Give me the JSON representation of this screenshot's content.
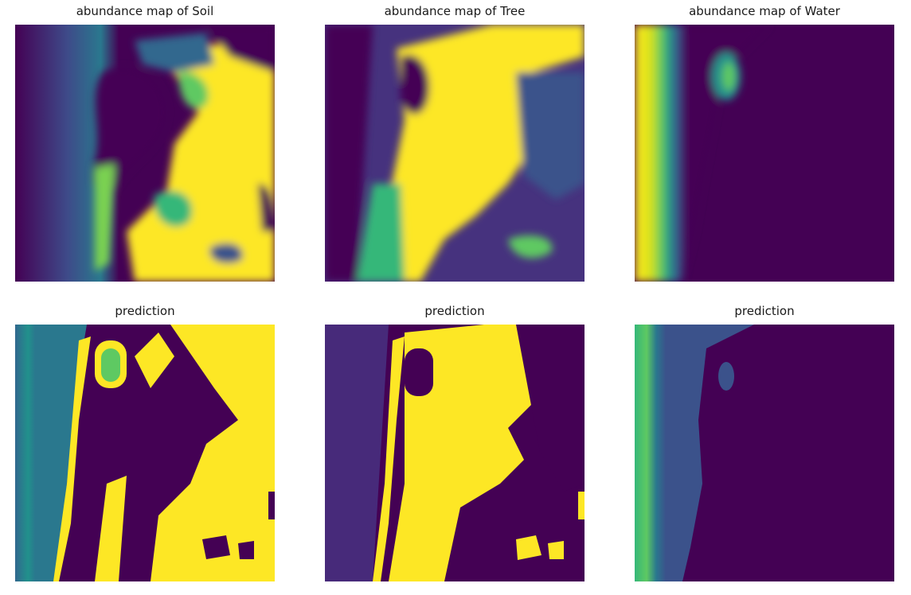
{
  "panels": [
    {
      "title": "abundance map of Soil"
    },
    {
      "title": "abundance map of Tree"
    },
    {
      "title": "abundance map of Water"
    },
    {
      "title": "prediction"
    },
    {
      "title": "prediction"
    },
    {
      "title": "prediction"
    }
  ],
  "colors": {
    "viridis_dark": "#440154",
    "viridis_blue": "#3b528b",
    "viridis_teal": "#21918c",
    "viridis_green": "#5ec962",
    "viridis_yellow": "#fde725"
  }
}
